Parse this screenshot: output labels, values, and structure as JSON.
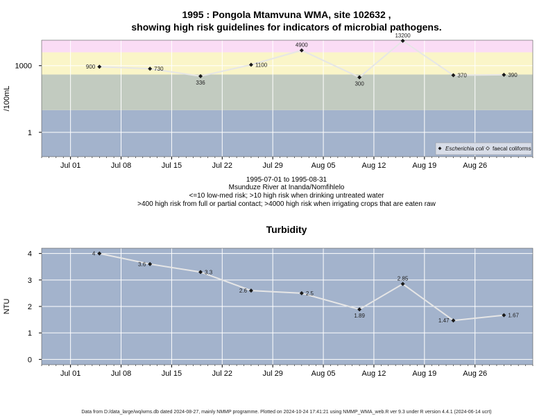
{
  "figure": {
    "title_line1": "1995 : Pongola Mtamvuna WMA, site 102632 ,",
    "title_line2": "showing high risk guidelines for indicators of microbial pathogens.",
    "caption": [
      "1995-07-01 to 1995-08-31",
      "Msunduze River at Inanda/Nomfihlelo",
      "<=10 low-med risk; >10 high risk when drinking untreated water",
      ">400 high risk from full or partial contact; >4000 high risk when irrigating crops that are eaten raw"
    ],
    "footer": "Data from D:/data_large/wq/wms.db dated 2024-08-27, mainly NMMP programme. Plotted on 2024-10-24 17:41:21 using NMMP_WMA_web.R ver 9.3 under R version 4.4.1 (2024-06-14 ucrt)"
  },
  "colors": {
    "band_low": "#a3b3cc",
    "band_mid": "#c2cbc0",
    "band_high": "#faf5c8",
    "band_very_high": "#fadcf5",
    "line": "#e6e6e6",
    "point": "#1a1a1a",
    "grid": "#ffffff",
    "turbidity_bg": "#a3b3cc"
  },
  "chart_data": [
    {
      "type": "line",
      "title": "",
      "ylabel": "/100mL",
      "y_scale": "log10",
      "ylim": [
        0.08,
        14000
      ],
      "yticks": [
        1,
        1000
      ],
      "ytick_labels": [
        "1",
        "1000"
      ],
      "x_range": [
        "1995-06-27",
        "1995-09-03"
      ],
      "xticks": [
        "1995-07-01",
        "1995-07-08",
        "1995-07-15",
        "1995-07-22",
        "1995-07-29",
        "1995-08-05",
        "1995-08-12",
        "1995-08-19",
        "1995-08-26"
      ],
      "xtick_labels": [
        "Jul 01",
        "Jul 08",
        "Jul 15",
        "Jul 22",
        "Jul 29",
        "Aug 05",
        "Aug 12",
        "Aug 19",
        "Aug 26"
      ],
      "guideline_bands": [
        10,
        400,
        4000
      ],
      "legend": {
        "placement": "bottom-right",
        "entries": [
          "Escherichia coli",
          "faecal coliforms"
        ]
      },
      "series": [
        {
          "name": "Escherichia coli",
          "x": [
            "1995-07-05",
            "1995-07-12",
            "1995-07-19",
            "1995-07-26",
            "1995-08-02",
            "1995-08-10",
            "1995-08-16",
            "1995-08-23",
            "1995-08-30"
          ],
          "values": [
            900,
            730,
            336,
            1100,
            4900,
            300,
            13200,
            370,
            390
          ],
          "labels": [
            "900",
            "730",
            "336",
            "1100",
            "4900",
            "300",
            "13200",
            "370",
            "390"
          ]
        }
      ]
    },
    {
      "type": "line",
      "title": "Turbidity",
      "ylabel": "NTU",
      "ylim": [
        -0.2,
        4.2
      ],
      "yticks": [
        0,
        1,
        2,
        3,
        4
      ],
      "ytick_labels": [
        "0",
        "1",
        "2",
        "3",
        "4"
      ],
      "x_range": [
        "1995-06-27",
        "1995-09-03"
      ],
      "xticks": [
        "1995-07-01",
        "1995-07-08",
        "1995-07-15",
        "1995-07-22",
        "1995-07-29",
        "1995-08-05",
        "1995-08-12",
        "1995-08-19",
        "1995-08-26"
      ],
      "xtick_labels": [
        "Jul 01",
        "Jul 08",
        "Jul 15",
        "Jul 22",
        "Jul 29",
        "Aug 05",
        "Aug 12",
        "Aug 19",
        "Aug 26"
      ],
      "series": [
        {
          "x": [
            "1995-07-05",
            "1995-07-12",
            "1995-07-19",
            "1995-07-26",
            "1995-08-02",
            "1995-08-10",
            "1995-08-16",
            "1995-08-23",
            "1995-08-30"
          ],
          "values": [
            4,
            3.6,
            3.3,
            2.6,
            2.5,
            1.89,
            2.85,
            1.47,
            1.67
          ],
          "labels": [
            "4",
            "3.6",
            "3.3",
            "2.6",
            "2.5",
            "1.89",
            "2.85",
            "1.47",
            "1.67"
          ]
        }
      ]
    }
  ]
}
